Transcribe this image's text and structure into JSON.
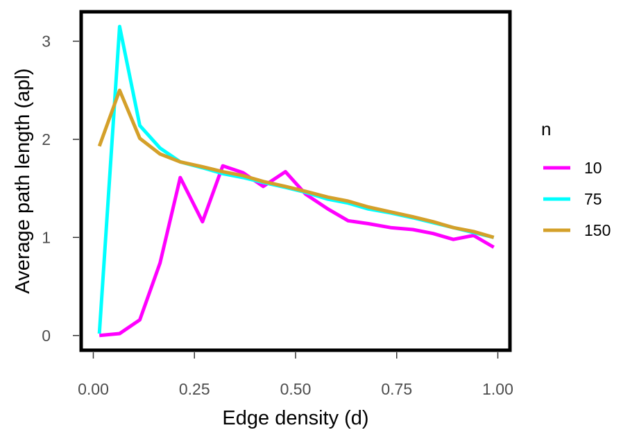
{
  "chart_data": {
    "type": "line",
    "xlabel": "Edge density (d)",
    "ylabel": "Average path length (apl)",
    "xlim": [
      -0.03,
      1.03
    ],
    "ylim": [
      -0.15,
      3.3
    ],
    "xticks": [
      0.0,
      0.25,
      0.5,
      0.75,
      1.0
    ],
    "xtick_labels": [
      "0.00",
      "0.25",
      "0.50",
      "0.75",
      "1.00"
    ],
    "yticks": [
      0,
      1,
      2,
      3
    ],
    "ytick_labels": [
      "0",
      "1",
      "2",
      "3"
    ],
    "grid": false,
    "legend": {
      "title": "n",
      "position": "right"
    },
    "series": [
      {
        "name": "10",
        "color": "#ff00ff",
        "x": [
          0.015,
          0.065,
          0.115,
          0.165,
          0.215,
          0.27,
          0.32,
          0.37,
          0.42,
          0.475,
          0.525,
          0.58,
          0.63,
          0.68,
          0.735,
          0.79,
          0.84,
          0.89,
          0.94,
          0.99
        ],
        "y": [
          0.0,
          0.02,
          0.16,
          0.74,
          1.61,
          1.16,
          1.73,
          1.66,
          1.52,
          1.67,
          1.44,
          1.29,
          1.17,
          1.14,
          1.1,
          1.08,
          1.04,
          0.98,
          1.02,
          0.9
        ]
      },
      {
        "name": "75",
        "color": "#00ffff",
        "x": [
          0.015,
          0.065,
          0.115,
          0.165,
          0.215,
          0.27,
          0.32,
          0.37,
          0.42,
          0.475,
          0.525,
          0.58,
          0.63,
          0.68,
          0.735,
          0.79,
          0.84,
          0.89,
          0.94,
          0.99
        ],
        "y": [
          0.02,
          3.15,
          2.14,
          1.91,
          1.77,
          1.71,
          1.65,
          1.61,
          1.56,
          1.51,
          1.46,
          1.39,
          1.35,
          1.29,
          1.25,
          1.2,
          1.15,
          1.1,
          1.05,
          1.0
        ]
      },
      {
        "name": "150",
        "color": "#d4a02a",
        "x": [
          0.015,
          0.065,
          0.115,
          0.165,
          0.215,
          0.27,
          0.32,
          0.37,
          0.42,
          0.475,
          0.525,
          0.58,
          0.63,
          0.68,
          0.735,
          0.79,
          0.84,
          0.89,
          0.94,
          0.99
        ],
        "y": [
          1.93,
          2.5,
          2.01,
          1.85,
          1.77,
          1.72,
          1.67,
          1.63,
          1.57,
          1.52,
          1.47,
          1.41,
          1.37,
          1.31,
          1.26,
          1.21,
          1.16,
          1.1,
          1.06,
          1.0
        ]
      }
    ]
  }
}
